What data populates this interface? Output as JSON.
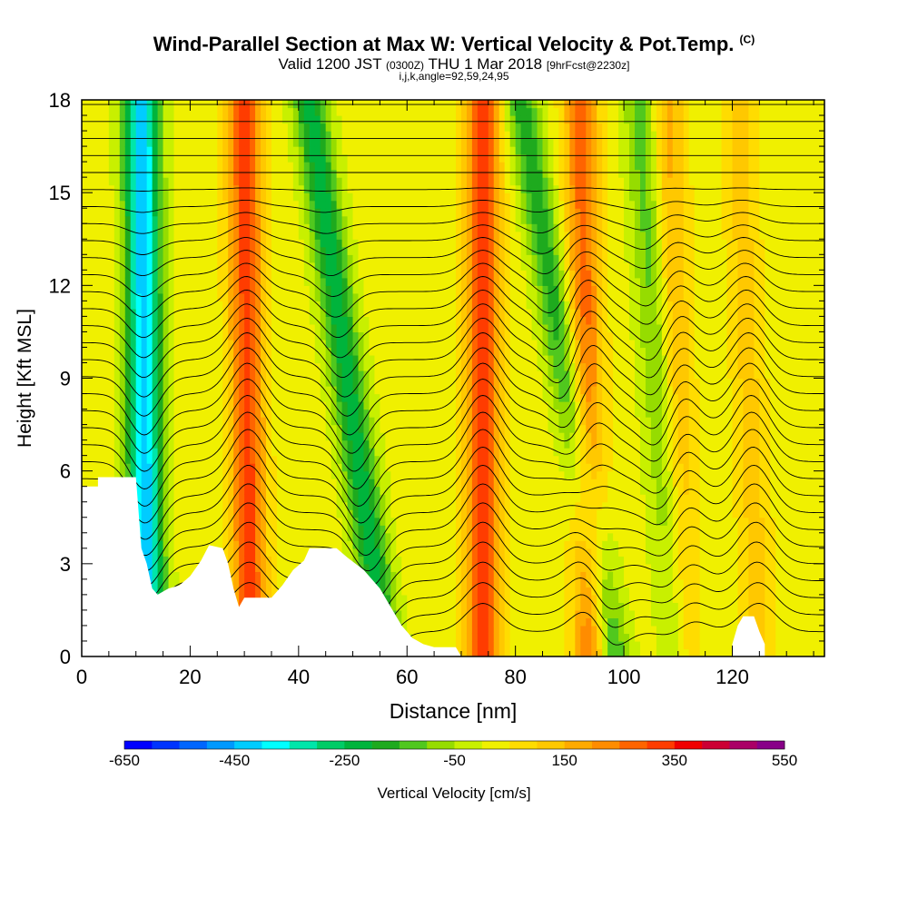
{
  "header": {
    "title": "Wind-Parallel Section at Max W: Vertical Velocity & Pot.Temp.",
    "title_mark": "(C)",
    "valid_prefix": "Valid 1200 JST",
    "valid_utc": "(0300Z)",
    "valid_date": "THU 1 Mar 2018",
    "forecast": "[9hrFcst@2230z]",
    "indices": "i,j,k,angle=92,59,24,95"
  },
  "chart_data": {
    "type": "heatmap",
    "xlabel": "Distance [nm]",
    "ylabel": "Height [Kft MSL]",
    "xlim": [
      0,
      137
    ],
    "ylim": [
      0,
      18
    ],
    "xticks": [
      0,
      20,
      40,
      60,
      80,
      100,
      120
    ],
    "yticks": [
      0,
      3,
      6,
      9,
      12,
      15,
      18
    ],
    "colorbar": {
      "title": "Vertical Velocity [cm/s]",
      "tick_labels": [
        "-650",
        "-450",
        "-250",
        "-50",
        "150",
        "350",
        "550"
      ],
      "levels": [
        -650,
        -600,
        -550,
        -500,
        -450,
        -400,
        -350,
        -300,
        -250,
        -200,
        -150,
        -100,
        -50,
        0,
        50,
        100,
        150,
        200,
        250,
        300,
        350,
        400,
        450,
        500,
        550
      ],
      "colors": [
        "#0000ff",
        "#0033ff",
        "#0066ff",
        "#0099ff",
        "#00ccff",
        "#00ffff",
        "#00e6aa",
        "#00cc66",
        "#00b43c",
        "#1eaa1e",
        "#50c81e",
        "#96dc00",
        "#c8f000",
        "#f0f000",
        "#ffdc00",
        "#ffc800",
        "#ffaa00",
        "#ff8c00",
        "#ff6400",
        "#ff3c00",
        "#f00000",
        "#cc0033",
        "#aa0066",
        "#880088",
        "#550099"
      ]
    },
    "wave_bands": [
      {
        "x_at_0kft": 12,
        "x_at_18kft": 11,
        "vvel": -450,
        "kind": "downdraft"
      },
      {
        "x_at_0kft": 31,
        "x_at_18kft": 30,
        "vvel": 300,
        "kind": "updraft"
      },
      {
        "x_at_0kft": 56,
        "x_at_18kft": 42,
        "vvel": -250,
        "kind": "downdraft"
      },
      {
        "x_at_0kft": 74,
        "x_at_18kft": 74,
        "vvel": 300,
        "kind": "updraft"
      },
      {
        "x_at_0kft": 98,
        "x_at_18kft": 81,
        "vvel": -200,
        "kind": "downdraft"
      },
      {
        "x_at_0kft": 94,
        "x_at_18kft": 92,
        "vvel": 250,
        "kind": "updraft"
      },
      {
        "x_at_0kft": 110,
        "x_at_18kft": 103,
        "vvel": -150,
        "kind": "downdraft"
      },
      {
        "x_at_0kft": 111,
        "x_at_18kft": 108,
        "vvel": 150,
        "kind": "updraft"
      },
      {
        "x_at_0kft": 125,
        "x_at_18kft": 121,
        "vvel": 100,
        "kind": "updraft"
      }
    ],
    "terrain_kft": [
      [
        0,
        5.5
      ],
      [
        3,
        5.5
      ],
      [
        3,
        5.8
      ],
      [
        10,
        5.8
      ],
      [
        11,
        3.5
      ],
      [
        12,
        3
      ],
      [
        13,
        2.2
      ],
      [
        14,
        2.0
      ],
      [
        16,
        2.2
      ],
      [
        18,
        2.3
      ],
      [
        20,
        2.6
      ],
      [
        22,
        3.1
      ],
      [
        23.5,
        3.6
      ],
      [
        26,
        3.5
      ],
      [
        27,
        3.0
      ],
      [
        28,
        2.2
      ],
      [
        29,
        1.6
      ],
      [
        30,
        1.9
      ],
      [
        35,
        1.9
      ],
      [
        37,
        2.3
      ],
      [
        39,
        2.8
      ],
      [
        41,
        3.1
      ],
      [
        42,
        3.5
      ],
      [
        47,
        3.5
      ],
      [
        49,
        3.2
      ],
      [
        52,
        2.8
      ],
      [
        55,
        2.2
      ],
      [
        57,
        1.6
      ],
      [
        59,
        1.0
      ],
      [
        61,
        0.6
      ],
      [
        63,
        0.4
      ],
      [
        65,
        0.3
      ],
      [
        69,
        0.3
      ],
      [
        70,
        0
      ]
    ],
    "terrain_bumps_kft": [
      [
        120,
        0.4
      ],
      [
        121,
        1.0
      ],
      [
        122,
        1.3
      ],
      [
        124,
        1.3
      ],
      [
        125,
        0.8
      ],
      [
        126,
        0.4
      ]
    ]
  }
}
